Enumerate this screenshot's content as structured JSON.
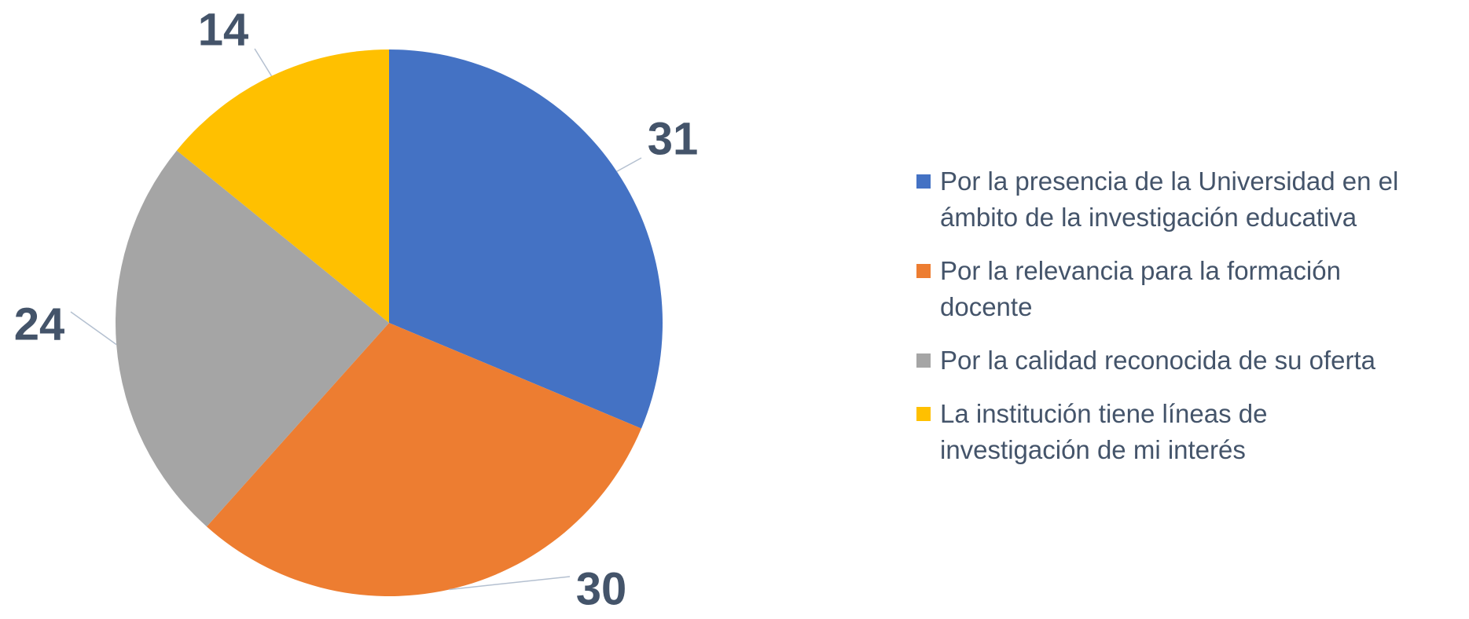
{
  "chart_data": {
    "type": "pie",
    "categories": [
      "Por la presencia de la Universidad en el ámbito de la investigación educativa",
      "Por la relevancia para la formación docente",
      "Por la calidad reconocida de su oferta",
      "La institución tiene líneas de investigación de mi interés"
    ],
    "values": [
      31,
      30,
      24,
      14
    ],
    "colors": [
      "#4472c4",
      "#ed7d31",
      "#a5a5a5",
      "#ffc000"
    ]
  }
}
